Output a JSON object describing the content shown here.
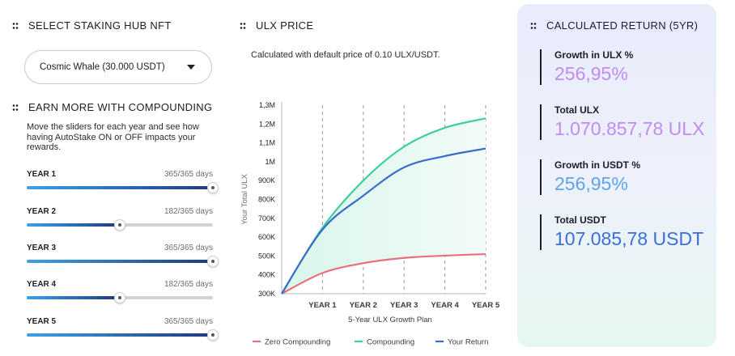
{
  "nft_section": {
    "title": "SELECT STAKING HUB NFT",
    "selected": "Cosmic Whale (30.000 USDT)"
  },
  "compounding_section": {
    "title": "EARN MORE WITH COMPOUNDING",
    "description": "Move the sliders for each year and see how having AutoStake ON or OFF impacts your rewards.",
    "years": [
      {
        "label": "YEAR 1",
        "days_text": "365/365 days",
        "fraction": 1.0
      },
      {
        "label": "YEAR 2",
        "days_text": "182/365 days",
        "fraction": 0.4986
      },
      {
        "label": "YEAR 3",
        "days_text": "365/365 days",
        "fraction": 1.0
      },
      {
        "label": "YEAR 4",
        "days_text": "182/365 days",
        "fraction": 0.4986
      },
      {
        "label": "YEAR 5",
        "days_text": "365/365 days",
        "fraction": 1.0
      }
    ]
  },
  "price_section": {
    "title": "ULX PRICE",
    "note": "Calculated with default price of 0.10 ULX/USDT."
  },
  "chart_data": {
    "type": "line",
    "xlabel": "5-Year ULX Growth Plan",
    "ylabel": "Your Total ULX",
    "x_ticks": [
      "YEAR 1",
      "YEAR 2",
      "YEAR 3",
      "YEAR 4",
      "YEAR 5"
    ],
    "y_ticks": [
      "300K",
      "400K",
      "500K",
      "600K",
      "700K",
      "800K",
      "900K",
      "1M",
      "1,1M",
      "1,2M",
      "1,3M"
    ],
    "ylim": [
      300000,
      1300000
    ],
    "xlim": [
      0,
      5
    ],
    "grid_x": true,
    "series": [
      {
        "name": "Zero Compounding",
        "color": "#e8707c",
        "x": [
          0,
          1,
          2,
          3,
          4,
          5
        ],
        "values": [
          300000,
          410000,
          462000,
          490000,
          502000,
          510000
        ]
      },
      {
        "name": "Compounding",
        "color": "#3fcf9a",
        "x": [
          0,
          1,
          2,
          3,
          4,
          5
        ],
        "values": [
          300000,
          650000,
          900000,
          1080000,
          1180000,
          1230000
        ]
      },
      {
        "name": "Your Return",
        "color": "#3a6cc9",
        "x": [
          0,
          1,
          2,
          3,
          4,
          5
        ],
        "values": [
          300000,
          640000,
          820000,
          970000,
          1030000,
          1070000
        ]
      }
    ],
    "legend": "bottom"
  },
  "returns": {
    "title": "CALCULATED RETURN (5YR)",
    "items": [
      {
        "label": "Growth in ULX %",
        "value": "256,95%",
        "color": "#c28bf3"
      },
      {
        "label": "Total ULX",
        "value": "1.070.857,78 ULX",
        "color": "#c28bf3"
      },
      {
        "label": "Growth in USDT %",
        "value": "256,95%",
        "color": "#5fa4ea"
      },
      {
        "label": "Total USDT",
        "value": "107.085,78 USDT",
        "color": "#3a6ee0"
      }
    ]
  }
}
